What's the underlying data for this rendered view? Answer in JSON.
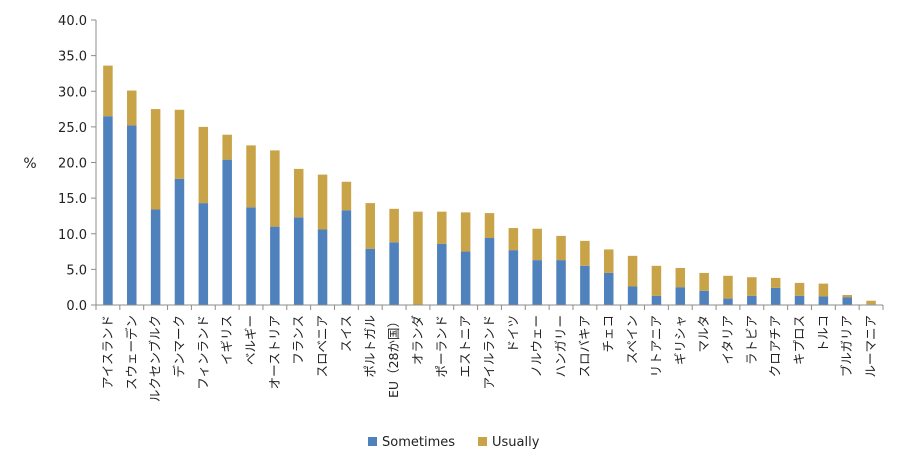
{
  "chart_data": {
    "type": "bar",
    "stacked": true,
    "title": "",
    "xlabel": "",
    "ylabel": "%",
    "ylim": [
      0,
      40
    ],
    "yticks": [
      "0.0",
      "5.0",
      "10.0",
      "15.0",
      "20.0",
      "25.0",
      "30.0",
      "35.0",
      "40.0"
    ],
    "grid": false,
    "legend_position": "bottom",
    "categories": [
      "アイスランド",
      "スウェーデン",
      "ルクセンブルク",
      "デンマーク",
      "フィンランド",
      "イギリス",
      "ベルギー",
      "オーストリア",
      "フランス",
      "スロベニア",
      "スイス",
      "ポルトガル",
      "EU（28か国）",
      "オランダ",
      "ポーランド",
      "エストニア",
      "アイルランド",
      "ドイツ",
      "ノルウェー",
      "ハンガリー",
      "スロバキア",
      "チェコ",
      "スペイン",
      "リトアニア",
      "ギリシャ",
      "マルタ",
      "イタリア",
      "ラトビア",
      "クロアチア",
      "キプロス",
      "トルコ",
      "ブルガリア",
      "ルーマニア"
    ],
    "series": [
      {
        "name": "Sometimes",
        "color": "#4f81bd",
        "values": [
          26.5,
          25.2,
          13.4,
          17.7,
          14.3,
          20.4,
          13.7,
          11.0,
          12.3,
          10.6,
          13.3,
          7.9,
          8.8,
          0.0,
          8.6,
          7.5,
          9.4,
          7.7,
          6.3,
          6.3,
          5.5,
          4.5,
          2.6,
          1.3,
          2.5,
          2.0,
          0.9,
          1.3,
          2.4,
          1.3,
          1.2,
          1.1,
          0.1
        ]
      },
      {
        "name": "Usually",
        "color": "#c9a347",
        "values": [
          7.1,
          4.9,
          14.1,
          9.7,
          10.7,
          3.5,
          8.7,
          10.7,
          6.8,
          7.7,
          4.0,
          6.4,
          4.7,
          13.1,
          4.5,
          5.5,
          3.5,
          3.1,
          4.4,
          3.4,
          3.5,
          3.3,
          4.3,
          4.2,
          2.7,
          2.5,
          3.2,
          2.6,
          1.4,
          1.8,
          1.8,
          0.3,
          0.5
        ]
      }
    ]
  }
}
